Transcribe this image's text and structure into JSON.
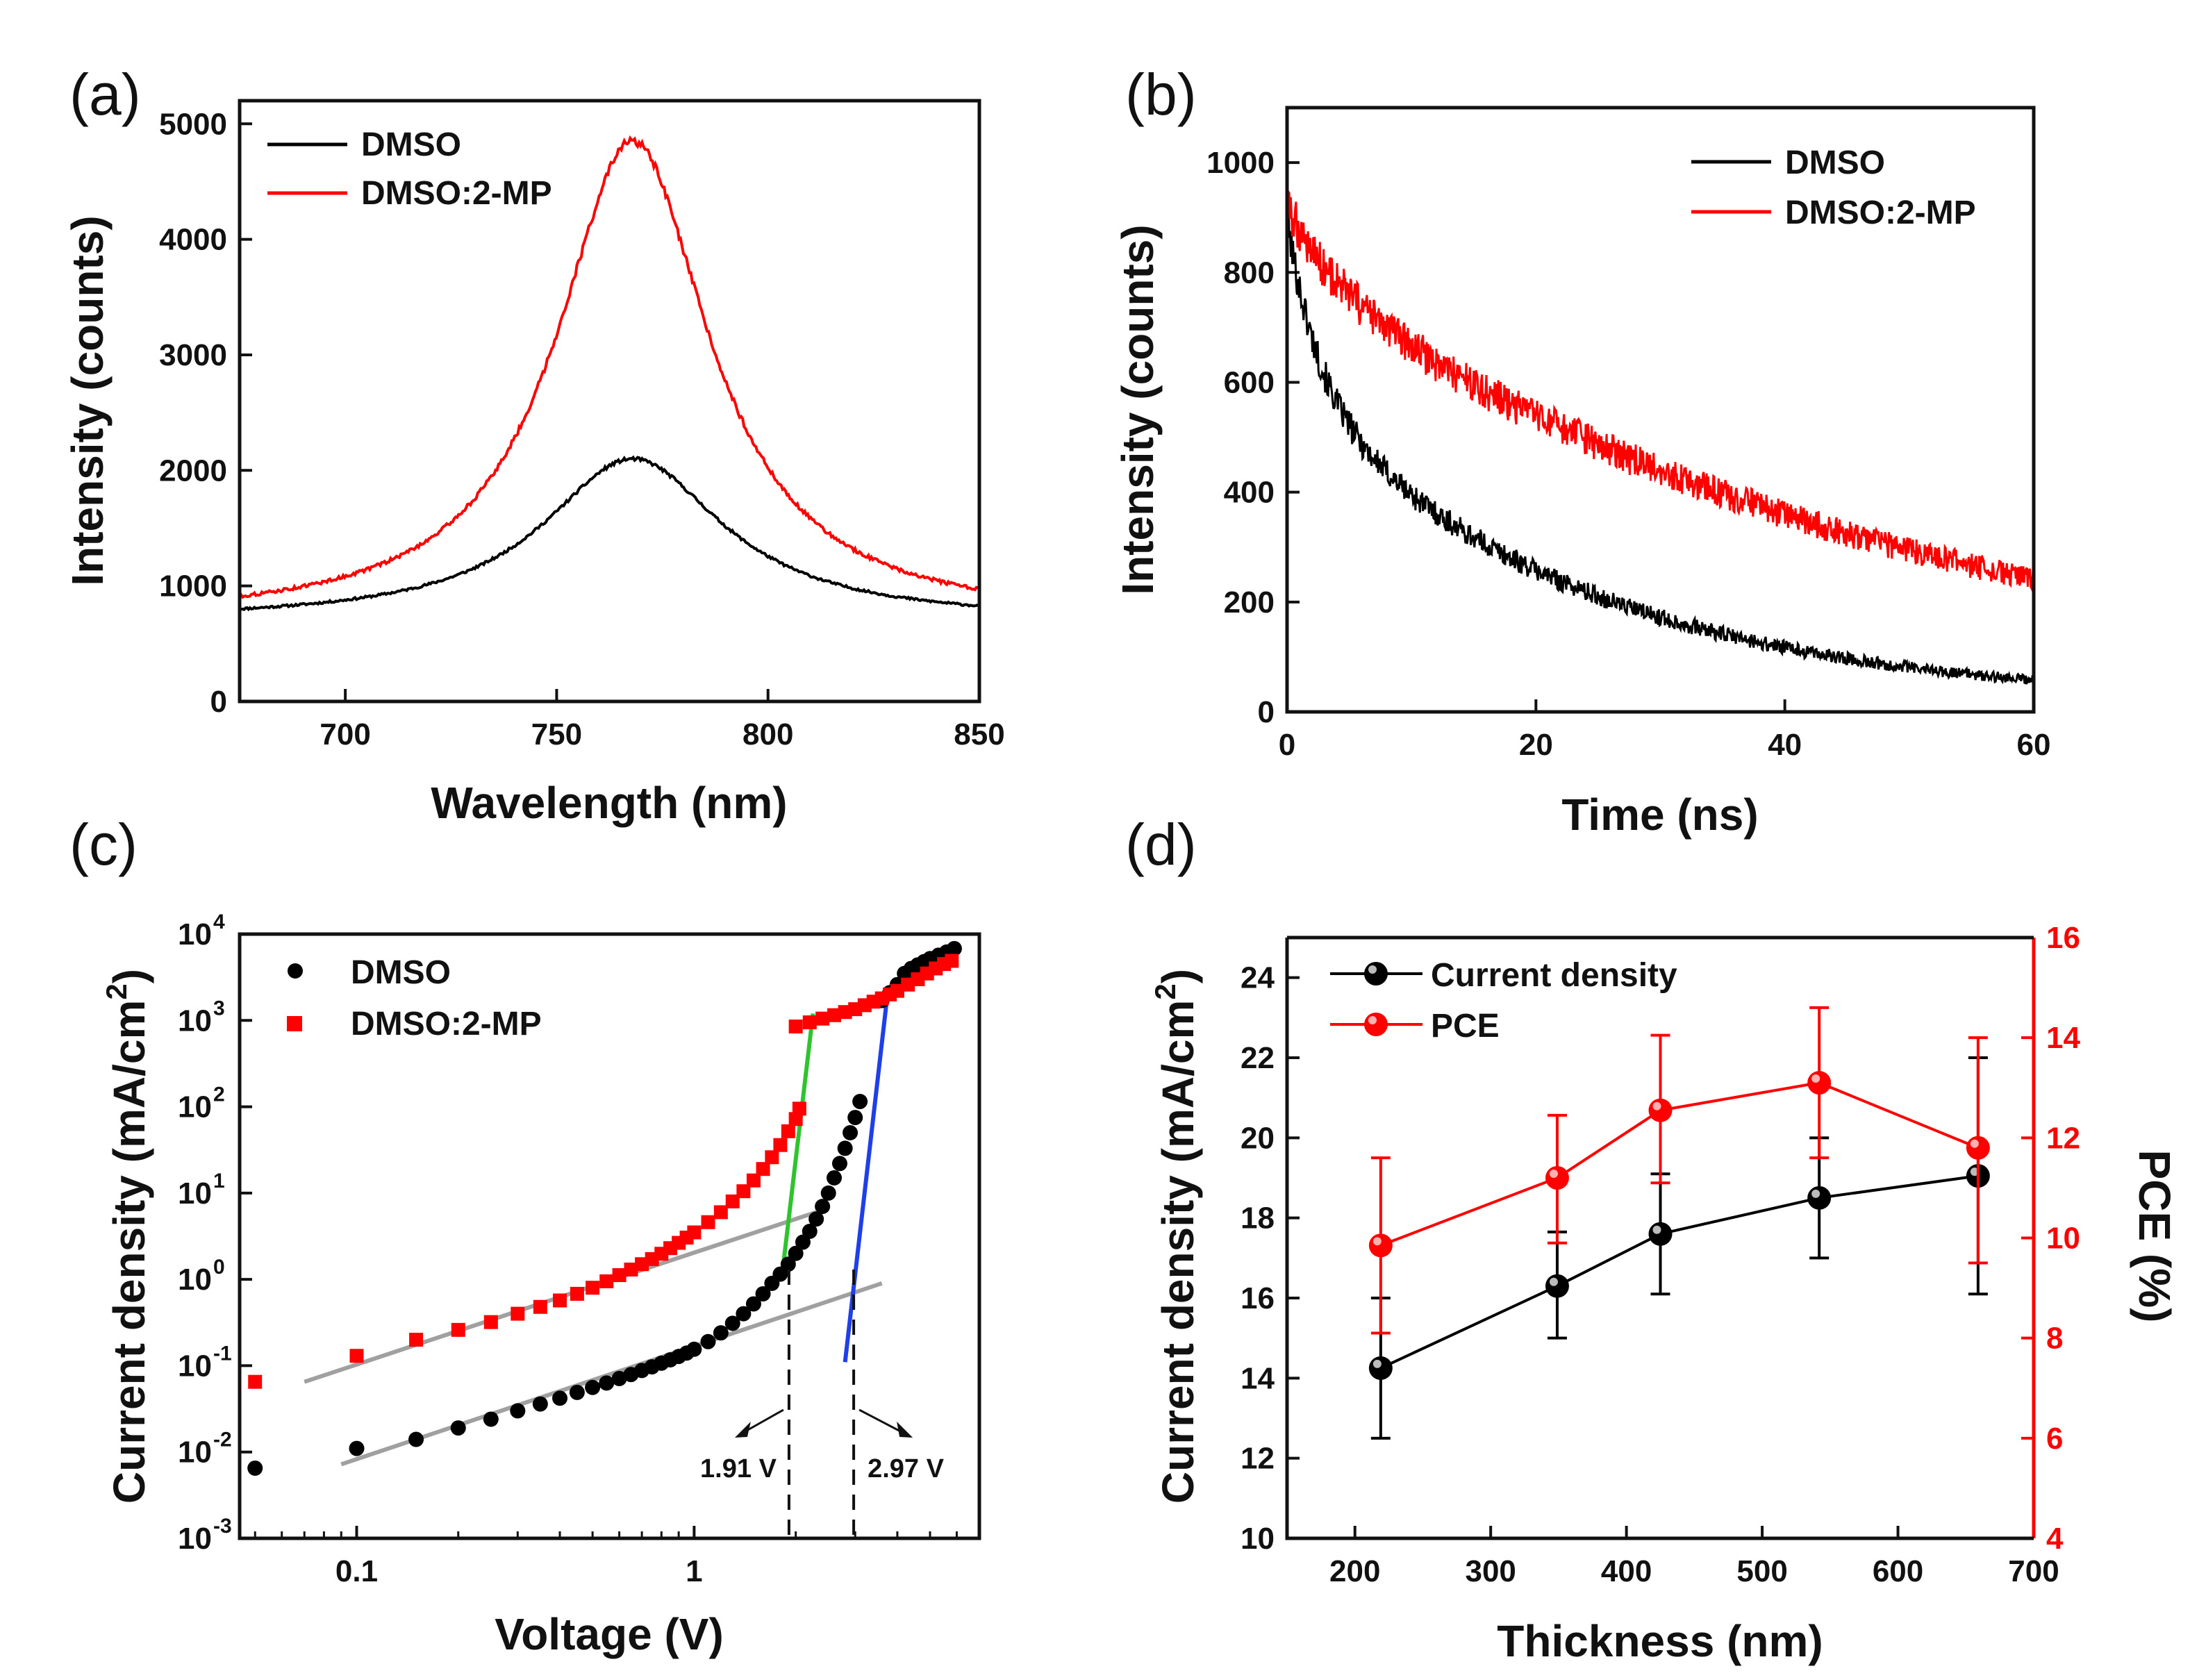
{
  "figure": {
    "background": "#ffffff",
    "series_colors": {
      "black": "#000000",
      "red": "#ff0000",
      "gray": "#a0a0a0",
      "green": "#2fc42f",
      "blue": "#1f3fe8"
    }
  },
  "chart_data": [
    {
      "panel": "(a)",
      "type": "line",
      "title": "",
      "xlabel": "Wavelength (nm)",
      "ylabel": "Intensity (counts)",
      "xlim": [
        675,
        850
      ],
      "ylim": [
        0,
        5200
      ],
      "xticks": [
        700,
        750,
        800,
        850
      ],
      "yticks": [
        0,
        1000,
        2000,
        3000,
        4000,
        5000
      ],
      "legend": {
        "position": "top-left"
      },
      "series": [
        {
          "name": "DMSO",
          "color": "#000000",
          "model": "lorentz",
          "baseline": 700,
          "peak_x": 768,
          "peak_y": 2100,
          "hwhm": 26,
          "noise": 18
        },
        {
          "name": "DMSO:2-MP",
          "color": "#ff0000",
          "model": "lorentz",
          "baseline": 690,
          "peak_x": 768,
          "peak_y": 4850,
          "hwhm": 22,
          "noise": 25
        }
      ]
    },
    {
      "panel": "(b)",
      "type": "line",
      "title": "",
      "xlabel": "Time (ns)",
      "ylabel": "Intensity (counts)",
      "xlim": [
        0,
        60
      ],
      "ylim": [
        0,
        1100
      ],
      "xticks": [
        0,
        20,
        40,
        60
      ],
      "yticks": [
        0,
        200,
        400,
        600,
        800,
        1000
      ],
      "legend": {
        "position": "top-right"
      },
      "series": [
        {
          "name": "DMSO",
          "color": "#000000",
          "model": "biexp",
          "a1": 300,
          "t1": 2.5,
          "a2": 580,
          "t2": 23,
          "floor": 15,
          "noise": 30
        },
        {
          "name": "DMSO:2-MP",
          "color": "#ff0000",
          "model": "biexp",
          "a1": 120,
          "t1": 4,
          "a2": 800,
          "t2": 50,
          "floor": 0,
          "noise": 35
        }
      ]
    },
    {
      "panel": "(c)",
      "type": "scatter",
      "title": "",
      "xlabel": "Voltage (V)",
      "ylabel": "Current density (mA/cm",
      "ylabel_sup": "2",
      "ylabel_end": ")",
      "xscale": "log",
      "yscale": "log",
      "xlim": [
        0.045,
        7
      ],
      "ylim": [
        0.001,
        10000
      ],
      "xticks": [
        {
          "value": 0.1,
          "label": "0.1"
        },
        {
          "value": 1,
          "label": "1"
        }
      ],
      "yticks": [
        {
          "value": 0.001,
          "base": "10",
          "exp": "-3"
        },
        {
          "value": 0.01,
          "base": "10",
          "exp": "-2"
        },
        {
          "value": 0.1,
          "base": "10",
          "exp": "-1"
        },
        {
          "value": 1,
          "base": "10",
          "exp": "0"
        },
        {
          "value": 10,
          "base": "10",
          "exp": "1"
        },
        {
          "value": 100,
          "base": "10",
          "exp": "2"
        },
        {
          "value": 1000,
          "base": "10",
          "exp": "3"
        },
        {
          "value": 10000,
          "base": "10",
          "exp": "4"
        }
      ],
      "legend": {
        "position": "top-left"
      },
      "series": [
        {
          "name": "DMSO",
          "marker": "circle",
          "color": "#000000",
          "points": [
            [
              0.05,
              0.0065
            ],
            [
              0.1,
              0.011
            ],
            [
              0.15,
              0.014
            ],
            [
              0.2,
              0.019
            ],
            [
              0.25,
              0.024
            ],
            [
              0.3,
              0.03
            ],
            [
              0.35,
              0.036
            ],
            [
              0.4,
              0.042
            ],
            [
              0.45,
              0.049
            ],
            [
              0.5,
              0.056
            ],
            [
              0.55,
              0.063
            ],
            [
              0.6,
              0.071
            ],
            [
              0.65,
              0.079
            ],
            [
              0.7,
              0.088
            ],
            [
              0.75,
              0.097
            ],
            [
              0.8,
              0.107
            ],
            [
              0.85,
              0.117
            ],
            [
              0.9,
              0.128
            ],
            [
              0.95,
              0.14
            ],
            [
              1.0,
              0.155
            ],
            [
              1.1,
              0.19
            ],
            [
              1.2,
              0.24
            ],
            [
              1.3,
              0.31
            ],
            [
              1.4,
              0.4
            ],
            [
              1.5,
              0.52
            ],
            [
              1.6,
              0.68
            ],
            [
              1.7,
              0.9
            ],
            [
              1.8,
              1.15
            ],
            [
              1.9,
              1.5
            ],
            [
              2.0,
              2.0
            ],
            [
              2.1,
              2.7
            ],
            [
              2.2,
              3.6
            ],
            [
              2.3,
              5.0
            ],
            [
              2.4,
              7.0
            ],
            [
              2.5,
              10
            ],
            [
              2.6,
              15
            ],
            [
              2.7,
              22
            ],
            [
              2.8,
              33
            ],
            [
              2.9,
              50
            ],
            [
              3.0,
              75
            ],
            [
              3.1,
              115
            ],
            [
              3.6,
              1700
            ],
            [
              3.8,
              2100
            ],
            [
              4.0,
              2600
            ],
            [
              4.2,
              3500
            ],
            [
              4.4,
              4000
            ],
            [
              4.6,
              4400
            ],
            [
              4.8,
              4800
            ],
            [
              5.0,
              5200
            ],
            [
              5.3,
              5700
            ],
            [
              5.6,
              6200
            ],
            [
              5.9,
              6800
            ]
          ]
        },
        {
          "name": "DMSO:2-MP",
          "marker": "square",
          "color": "#ff0000",
          "points": [
            [
              0.05,
              0.065
            ],
            [
              0.1,
              0.13
            ],
            [
              0.15,
              0.2
            ],
            [
              0.2,
              0.26
            ],
            [
              0.25,
              0.32
            ],
            [
              0.3,
              0.4
            ],
            [
              0.35,
              0.48
            ],
            [
              0.4,
              0.57
            ],
            [
              0.45,
              0.68
            ],
            [
              0.5,
              0.8
            ],
            [
              0.55,
              0.95
            ],
            [
              0.6,
              1.12
            ],
            [
              0.65,
              1.3
            ],
            [
              0.7,
              1.5
            ],
            [
              0.75,
              1.72
            ],
            [
              0.8,
              1.98
            ],
            [
              0.85,
              2.3
            ],
            [
              0.9,
              2.65
            ],
            [
              0.95,
              3.05
            ],
            [
              1.0,
              3.5
            ],
            [
              1.1,
              4.6
            ],
            [
              1.2,
              6.0
            ],
            [
              1.3,
              8.0
            ],
            [
              1.4,
              10.5
            ],
            [
              1.5,
              14
            ],
            [
              1.6,
              19
            ],
            [
              1.7,
              26
            ],
            [
              1.8,
              36
            ],
            [
              1.9,
              52
            ],
            [
              2.0,
              72
            ],
            [
              2.05,
              95
            ],
            [
              2.0,
              850
            ],
            [
              2.2,
              950
            ],
            [
              2.4,
              1050
            ],
            [
              2.6,
              1150
            ],
            [
              2.8,
              1250
            ],
            [
              3.0,
              1350
            ],
            [
              3.2,
              1500
            ],
            [
              3.4,
              1650
            ],
            [
              3.6,
              1800
            ],
            [
              3.8,
              2000
            ],
            [
              4.0,
              2200
            ],
            [
              4.3,
              2600
            ],
            [
              4.6,
              3000
            ],
            [
              4.9,
              3500
            ],
            [
              5.2,
              4000
            ],
            [
              5.5,
              4500
            ],
            [
              5.8,
              4900
            ]
          ]
        }
      ],
      "fit_lines": [
        {
          "color": "#a0a0a0",
          "x1": 0.07,
          "y1": 0.065,
          "x2": 2.3,
          "y2": 6.0
        },
        {
          "color": "#a0a0a0",
          "x1": 0.09,
          "y1": 0.0072,
          "x2": 3.6,
          "y2": 0.9
        },
        {
          "color": "#2fc42f",
          "x1": 1.83,
          "y1": 1.3,
          "x2": 2.25,
          "y2": 1200
        },
        {
          "color": "#1f3fe8",
          "x1": 2.8,
          "y1": 0.11,
          "x2": 3.75,
          "y2": 2200
        }
      ],
      "annotations": [
        {
          "text": "1.91 V",
          "x": 1.91,
          "side": "left"
        },
        {
          "text": "2.97 V",
          "x": 2.97,
          "side": "right"
        }
      ]
    },
    {
      "panel": "(d)",
      "type": "line",
      "title": "",
      "xlabel": "Thickness (nm)",
      "ylabel": "Current density (mA/cm",
      "ylabel_sup": "2",
      "ylabel_end": ")",
      "y2label": "PCE (%)",
      "xlim": [
        150,
        700
      ],
      "ylim": [
        10,
        25
      ],
      "y2lim": [
        4,
        16
      ],
      "xticks": [
        200,
        300,
        400,
        500,
        600,
        700
      ],
      "yticks": [
        10,
        12,
        14,
        16,
        18,
        20,
        22,
        24
      ],
      "y2ticks": [
        4,
        6,
        8,
        10,
        12,
        14,
        16
      ],
      "legend": {
        "position": "top-left"
      },
      "categories": [
        219,
        349,
        425,
        542,
        659
      ],
      "series": [
        {
          "name": "Current density",
          "axis": "left",
          "color": "#000000",
          "values": [
            14.25,
            16.3,
            17.6,
            18.5,
            19.05
          ],
          "err_low": [
            12.5,
            15.0,
            16.1,
            17.0,
            16.1
          ],
          "err_high": [
            16.0,
            17.65,
            19.1,
            20.0,
            22.0
          ]
        },
        {
          "name": "PCE",
          "axis": "right",
          "color": "#ff0000",
          "values": [
            9.85,
            11.2,
            12.55,
            13.1,
            11.8
          ],
          "err_low": [
            8.1,
            9.9,
            11.1,
            11.6,
            9.5
          ],
          "err_high": [
            11.6,
            12.45,
            14.05,
            14.6,
            14.0
          ]
        }
      ]
    }
  ]
}
